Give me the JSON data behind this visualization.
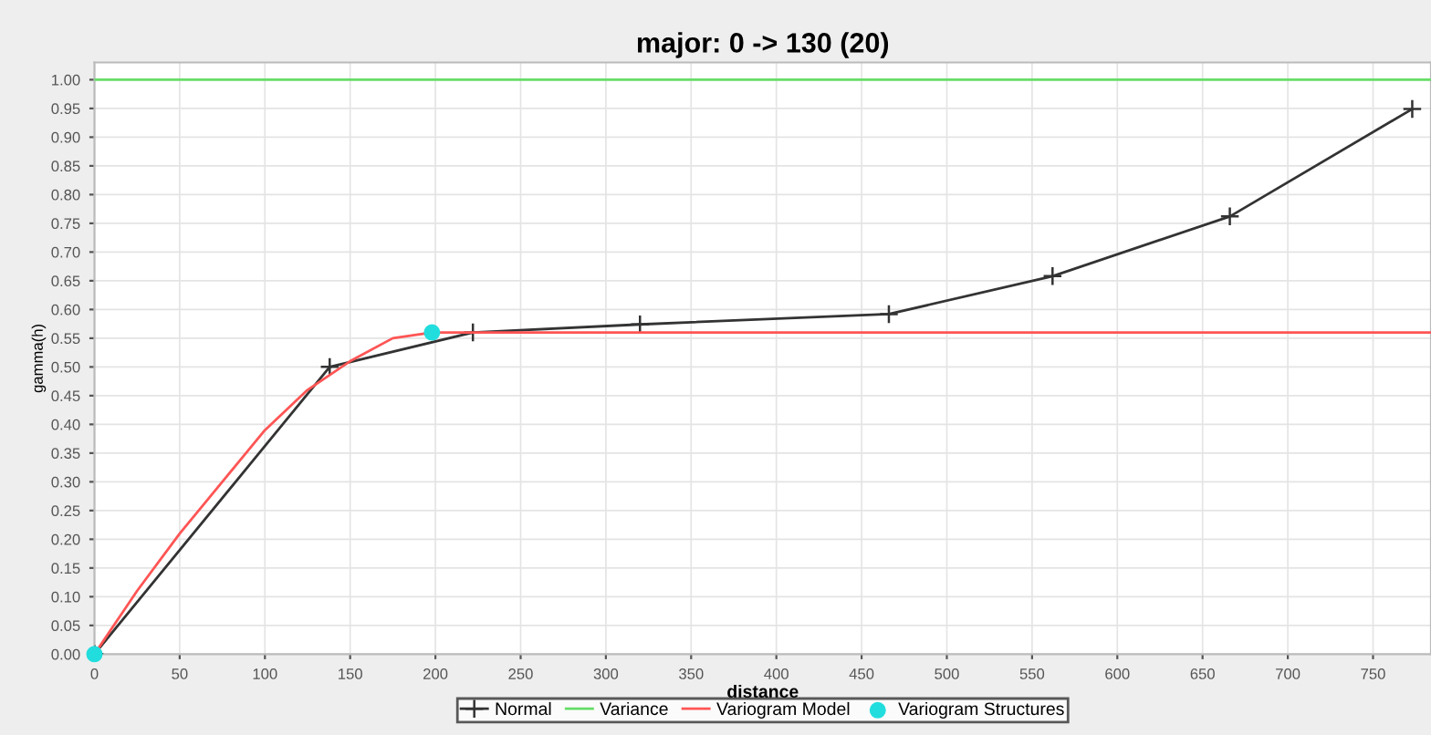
{
  "chart_data": {
    "type": "line",
    "title": "major: 0 -> 130 (20)",
    "xlabel": "distance",
    "ylabel": "gamma(h)",
    "xlim": [
      0,
      784
    ],
    "ylim": [
      0,
      1.03
    ],
    "xticks": [
      0,
      50,
      100,
      150,
      200,
      250,
      300,
      350,
      400,
      450,
      500,
      550,
      600,
      650,
      700,
      750
    ],
    "yticks": [
      {
        "value": 0,
        "label": "0.00"
      },
      {
        "value": 0.05,
        "label": "0.05"
      },
      {
        "value": 0.1,
        "label": "0.10"
      },
      {
        "value": 0.15,
        "label": "0.15"
      },
      {
        "value": 0.2,
        "label": "0.20"
      },
      {
        "value": 0.25,
        "label": "0.25"
      },
      {
        "value": 0.3,
        "label": "0.30"
      },
      {
        "value": 0.35,
        "label": "0.35"
      },
      {
        "value": 0.4,
        "label": "0.40"
      },
      {
        "value": 0.45,
        "label": "0.45"
      },
      {
        "value": 0.5,
        "label": "0.50"
      },
      {
        "value": 0.55,
        "label": "0.55"
      },
      {
        "value": 0.6,
        "label": "0.60"
      },
      {
        "value": 0.65,
        "label": "0.65"
      },
      {
        "value": 0.7,
        "label": "0.70"
      },
      {
        "value": 0.75,
        "label": "0.75"
      },
      {
        "value": 0.8,
        "label": "0.80"
      },
      {
        "value": 0.85,
        "label": "0.85"
      },
      {
        "value": 0.9,
        "label": "0.90"
      },
      {
        "value": 0.95,
        "label": "0.95"
      },
      {
        "value": 1,
        "label": "1.00"
      }
    ],
    "grid": true,
    "legend": "bottom",
    "series": [
      {
        "name": "Normal",
        "color": "#333333",
        "marker": "cross",
        "x": [
          0,
          138,
          222,
          320,
          466,
          562,
          666,
          773
        ],
        "values": [
          0,
          0.5,
          0.56,
          0.574,
          0.592,
          0.658,
          0.762,
          0.949
        ]
      },
      {
        "name": "Variance",
        "color": "#66dd66",
        "marker": "none",
        "x": [
          0,
          784
        ],
        "values": [
          1,
          1
        ]
      },
      {
        "name": "Variogram Model",
        "color": "#ff5555",
        "marker": "none",
        "x": [
          0,
          25,
          50,
          75,
          100,
          125,
          150,
          175,
          198,
          784
        ],
        "values": [
          0,
          0.11,
          0.21,
          0.3,
          0.39,
          0.46,
          0.51,
          0.55,
          0.56,
          0.56
        ]
      },
      {
        "name": "Variogram Structures",
        "type": "scatter",
        "color": "#22dddd",
        "marker": "circle",
        "x": [
          0,
          198
        ],
        "values": [
          0,
          0.56
        ]
      }
    ]
  }
}
